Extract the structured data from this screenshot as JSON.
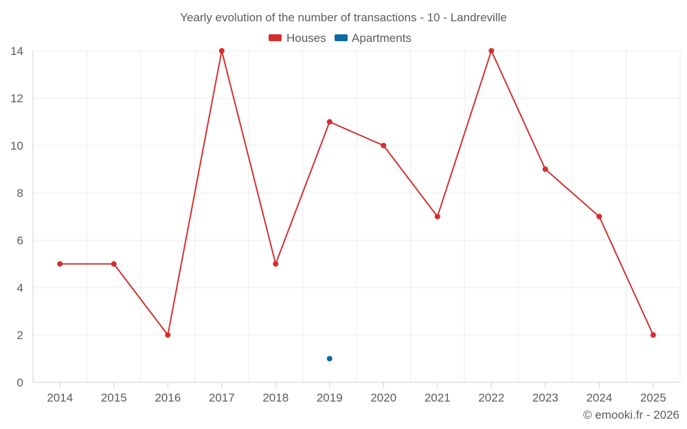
{
  "chart_data": {
    "type": "line",
    "title": "Yearly evolution of the number of transactions - 10 - Landreville",
    "xlabel": "",
    "ylabel": "",
    "categories": [
      "2014",
      "2015",
      "2016",
      "2017",
      "2018",
      "2019",
      "2020",
      "2021",
      "2022",
      "2023",
      "2024",
      "2025"
    ],
    "yticks": [
      "0",
      "2",
      "4",
      "6",
      "8",
      "10",
      "12",
      "14"
    ],
    "ylim": [
      0,
      14
    ],
    "grid": true,
    "legend_position": "top-center",
    "series": [
      {
        "name": "Houses",
        "color": "#d32f2f",
        "values": [
          5,
          5,
          2,
          14,
          5,
          11,
          10,
          7,
          14,
          9,
          7,
          2
        ]
      },
      {
        "name": "Apartments",
        "color": "#0b6aa2",
        "values": [
          null,
          null,
          null,
          null,
          null,
          1,
          null,
          null,
          null,
          null,
          null,
          null
        ]
      }
    ]
  },
  "credit": "© emooki.fr - 2026"
}
